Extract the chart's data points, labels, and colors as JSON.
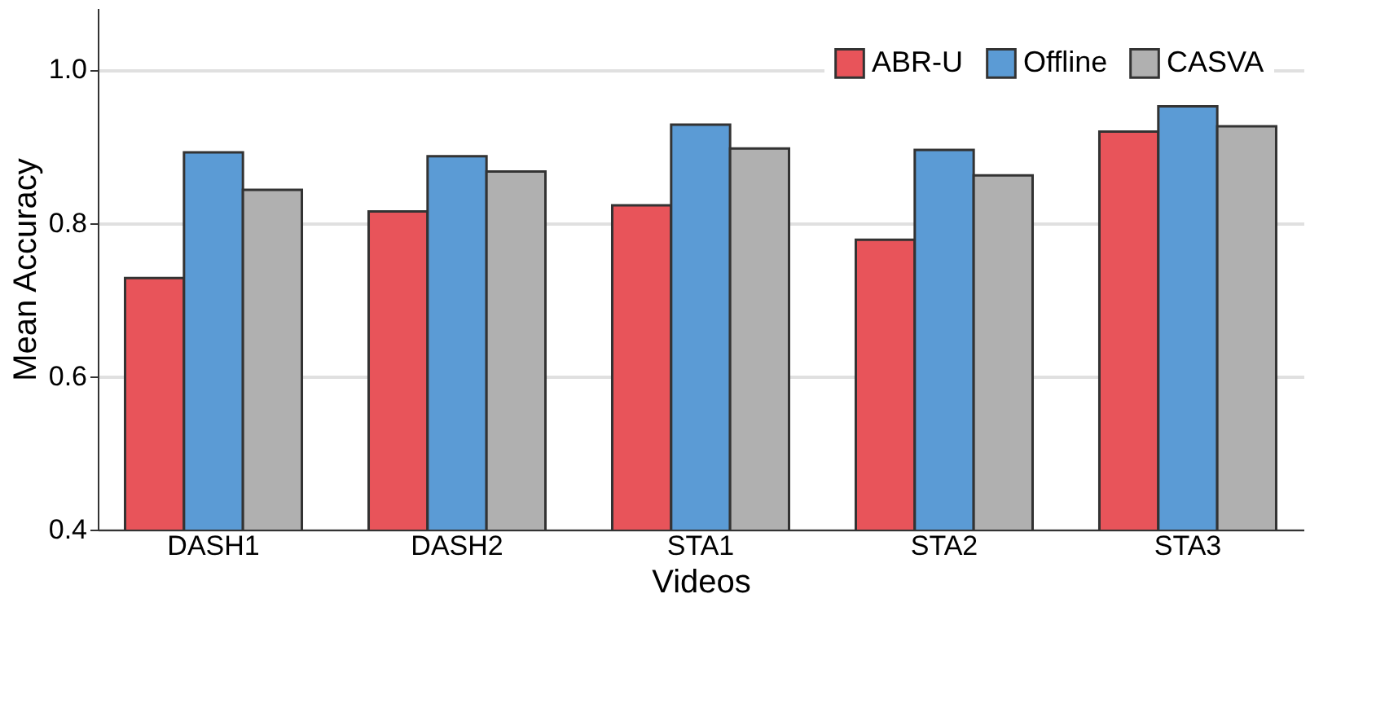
{
  "chart_data": {
    "type": "bar",
    "xlabel": "Videos",
    "ylabel": "Mean Accuracy",
    "categories": [
      "DASH1",
      "DASH2",
      "STA1",
      "STA2",
      "STA3"
    ],
    "series": [
      {
        "name": "ABR-U",
        "color": "#e8545a",
        "values": [
          0.728,
          0.815,
          0.823,
          0.778,
          0.919
        ]
      },
      {
        "name": "Offline",
        "color": "#5b9bd5",
        "values": [
          0.892,
          0.887,
          0.928,
          0.895,
          0.952
        ]
      },
      {
        "name": "CASVA",
        "color": "#b0b0b0",
        "values": [
          0.843,
          0.867,
          0.897,
          0.862,
          0.926
        ]
      }
    ],
    "ylim": [
      0.4,
      1.08
    ],
    "yticks": [
      0.4,
      0.6,
      0.8,
      {
        "value": 1.0,
        "label": "1.0"
      }
    ],
    "grid": "y",
    "legend": "top right"
  }
}
